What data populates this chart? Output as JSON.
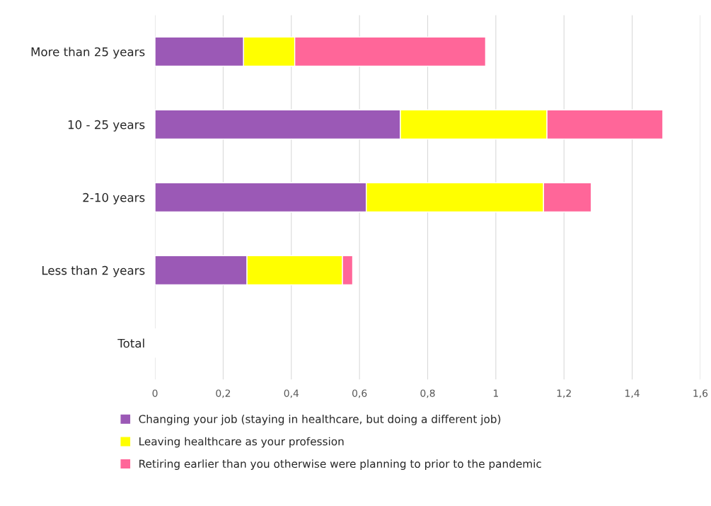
{
  "chart_data": {
    "type": "bar",
    "orientation": "horizontal",
    "stacked": true,
    "categories": [
      "More than 25 years",
      "10 - 25 years",
      "2-10 years",
      "Less than 2 years",
      "Total"
    ],
    "series": [
      {
        "name": "Changing your job (staying in healthcare, but doing a different job)",
        "color": "#9b59b6",
        "values": [
          0.26,
          0.72,
          0.62,
          0.27,
          null
        ]
      },
      {
        "name": "Leaving healthcare as your profession",
        "color": "#ffff00",
        "values": [
          0.15,
          0.43,
          0.52,
          0.28,
          null
        ]
      },
      {
        "name": "Retiring earlier than you otherwise were planning to prior to the pandemic",
        "color": "#ff6699",
        "values": [
          0.56,
          0.34,
          0.14,
          0.03,
          null
        ]
      }
    ],
    "xlim": [
      0,
      1.6
    ],
    "xticks": [
      0,
      {
        "value": 0.2,
        "label": "0,2"
      },
      {
        "value": 0.4,
        "label": "0,4"
      },
      {
        "value": 0.6,
        "label": "0,6"
      },
      {
        "value": 0.8,
        "label": "0,8"
      },
      1,
      {
        "value": 1.2,
        "label": "1,2"
      },
      {
        "value": 1.4,
        "label": "1,4"
      },
      {
        "value": 1.6,
        "label": "1,6"
      }
    ],
    "grid": "x",
    "legend": "bottom"
  }
}
